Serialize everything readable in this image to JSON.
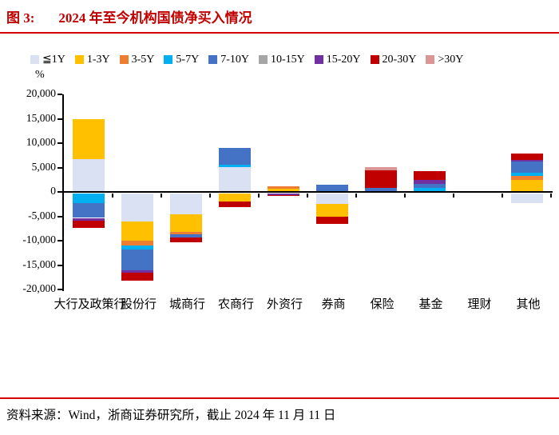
{
  "page": {
    "figure_label": "图 3:",
    "title": "2024 年至今机构国债净买入情况",
    "source_note": "资料来源：Wind，浙商证券研究所，截止 2024 年 11 月 11 日",
    "accent_red": "#C00000",
    "rule_red": "#D40000"
  },
  "chart_data": {
    "type": "bar",
    "stacked": true,
    "title": "2024 年至今机构国债净买入情况",
    "unit_label": "%",
    "legend_position": "top",
    "grid": false,
    "ylim": [
      -20000,
      20000
    ],
    "ytick_step": 5000,
    "ytick_labels": [
      "20,000",
      "15,000",
      "10,000",
      "5,000",
      "0",
      "-5,000",
      "-10,000",
      "-15,000",
      "-20,000"
    ],
    "categories": [
      "大行及政策行",
      "股份行",
      "城商行",
      "农商行",
      "外资行",
      "券商",
      "保险",
      "基金",
      "理财",
      "其他"
    ],
    "series": [
      {
        "name": "≦1Y",
        "color": "#D9E1F2",
        "values": [
          6800,
          -5700,
          -4300,
          5100,
          0,
          -2200,
          0,
          0,
          0,
          -2000
        ]
      },
      {
        "name": "1-3Y",
        "color": "#FFC000",
        "values": [
          8200,
          -4000,
          -3500,
          -1600,
          600,
          -2600,
          0,
          0,
          0,
          2400
        ]
      },
      {
        "name": "3-5Y",
        "color": "#ED7D31",
        "values": [
          0,
          -900,
          -500,
          0,
          500,
          0,
          0,
          0,
          0,
          800
        ]
      },
      {
        "name": "5-7Y",
        "color": "#00B0F0",
        "values": [
          -1900,
          -900,
          0,
          550,
          0,
          0,
          0,
          800,
          0,
          800
        ]
      },
      {
        "name": "7-10Y",
        "color": "#4472C4",
        "values": [
          -3100,
          -4200,
          -700,
          3300,
          0,
          1400,
          800,
          800,
          0,
          2200
        ]
      },
      {
        "name": "10-15Y",
        "color": "#A6A6A6",
        "values": [
          0,
          0,
          0,
          0,
          0,
          0,
          0,
          0,
          0,
          0
        ]
      },
      {
        "name": "15-20Y",
        "color": "#7030A0",
        "values": [
          -600,
          -600,
          0,
          0,
          -250,
          0,
          0,
          800,
          0,
          400
        ]
      },
      {
        "name": "20-30Y",
        "color": "#C00000",
        "values": [
          -1400,
          -1500,
          -1000,
          -1250,
          -250,
          -1400,
          3700,
          1900,
          200,
          1300
        ]
      },
      {
        "name": ">30Y",
        "color": "#DA9694",
        "values": [
          0,
          0,
          0,
          0,
          0,
          0,
          600,
          0,
          0,
          0
        ]
      }
    ]
  }
}
